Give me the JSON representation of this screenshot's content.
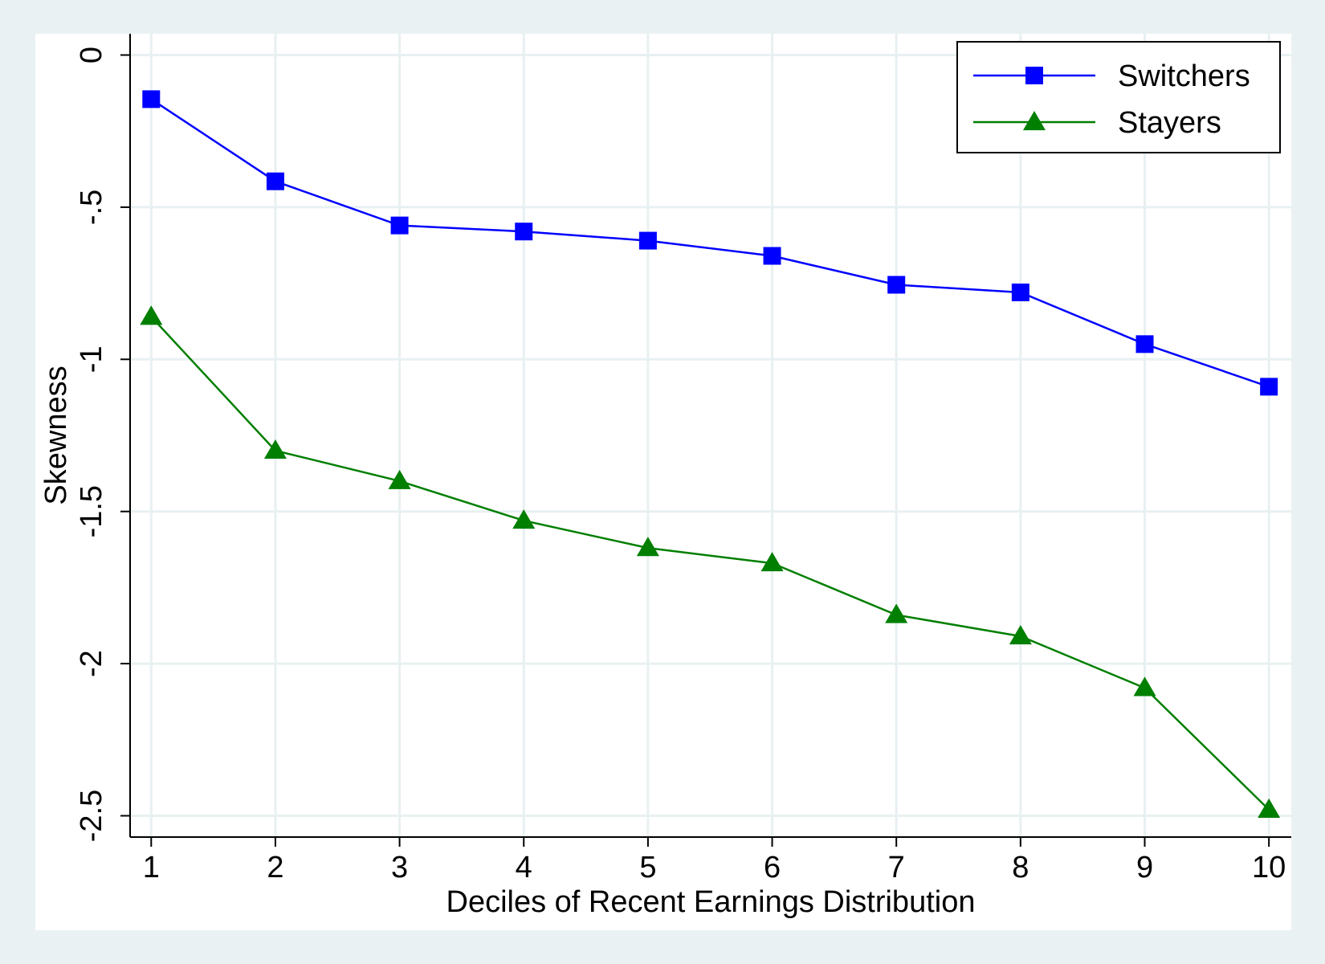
{
  "chart_data": {
    "type": "line",
    "title": "",
    "xlabel": "Deciles of Recent Earnings Distribution",
    "ylabel": "Skewness",
    "x": [
      1,
      2,
      3,
      4,
      5,
      6,
      7,
      8,
      9,
      10
    ],
    "xticks": [
      "1",
      "2",
      "3",
      "4",
      "5",
      "6",
      "7",
      "8",
      "9",
      "10"
    ],
    "yticks": [
      {
        "value": 0,
        "label": "0"
      },
      {
        "value": -0.5,
        "label": "-.5"
      },
      {
        "value": -1,
        "label": "-1"
      },
      {
        "value": -1.5,
        "label": "-1.5"
      },
      {
        "value": -2,
        "label": "-2"
      },
      {
        "value": -2.5,
        "label": "-2.5"
      }
    ],
    "xlim": [
      0.83,
      10.18
    ],
    "ylim": [
      -2.57,
      0.07
    ],
    "grid": true,
    "legend_position": "top-right",
    "series": [
      {
        "name": "Switchers",
        "color": "#0000ff",
        "marker": "square",
        "values": [
          -0.145,
          -0.415,
          -0.56,
          -0.58,
          -0.61,
          -0.66,
          -0.755,
          -0.78,
          -0.95,
          -1.09
        ]
      },
      {
        "name": "Stayers",
        "color": "#007f00",
        "marker": "triangle",
        "values": [
          -0.86,
          -1.3,
          -1.4,
          -1.53,
          -1.62,
          -1.67,
          -1.84,
          -1.91,
          -2.08,
          -2.48
        ]
      }
    ]
  }
}
